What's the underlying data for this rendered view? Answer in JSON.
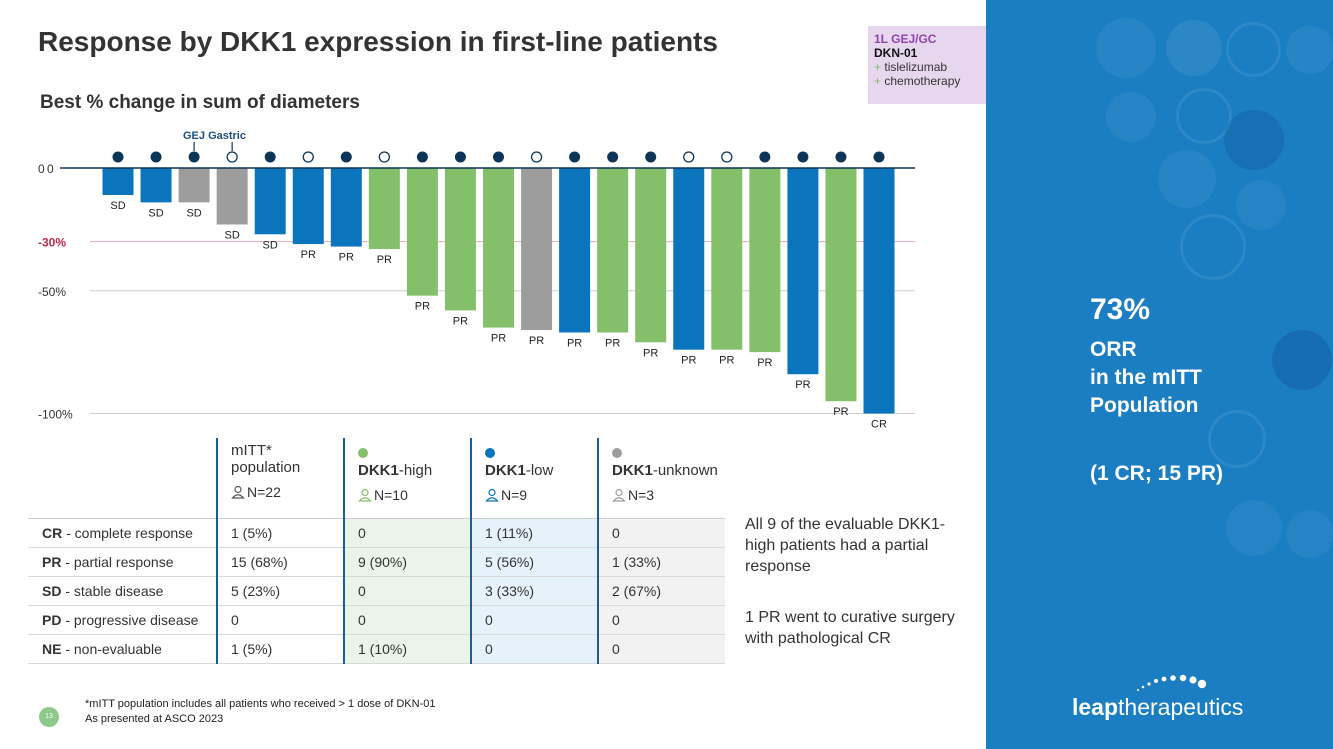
{
  "title": "Response by DKK1 expression in first-line patients",
  "subtitle": "Best % change in sum of diameters",
  "tag": {
    "line1": "1L GEJ/GC",
    "line2": "DKN-01",
    "line3_plus": "+",
    "line3": "tislelizumab",
    "line4_plus": "+",
    "line4": "chemotherapy"
  },
  "colors": {
    "high": "#84bf6a",
    "low": "#0a75bd",
    "unknown": "#9d9d9d",
    "navy": "#0d3557",
    "threshold_label": "#c0294a",
    "threshold_line": "#e7a9b5",
    "panel": "#1b7ec2"
  },
  "chart_data": {
    "type": "bar",
    "title": "Best % change in sum of diameters",
    "ylim": [
      -100,
      0
    ],
    "yticks": [
      {
        "value": 0,
        "label": "0"
      },
      {
        "value": -30,
        "label": "-30%",
        "highlight": true
      },
      {
        "value": -50,
        "label": "-50%"
      },
      {
        "value": -100,
        "label": "-100%"
      }
    ],
    "annotation": "GEJ Gastric",
    "marker_legend": {
      "filled": "GEJ",
      "open": "Gastric"
    },
    "series_colors": {
      "DKK1-high": "#84bf6a",
      "DKK1-low": "#0a75bd",
      "DKK1-unknown": "#9d9d9d"
    },
    "patients": [
      {
        "value": -11,
        "response": "SD",
        "dkk1": "DKK1-low",
        "site": "GEJ"
      },
      {
        "value": -14,
        "response": "SD",
        "dkk1": "DKK1-low",
        "site": "GEJ"
      },
      {
        "value": -14,
        "response": "SD",
        "dkk1": "DKK1-unknown",
        "site": "GEJ"
      },
      {
        "value": -23,
        "response": "SD",
        "dkk1": "DKK1-unknown",
        "site": "Gastric"
      },
      {
        "value": -27,
        "response": "SD",
        "dkk1": "DKK1-low",
        "site": "GEJ"
      },
      {
        "value": -31,
        "response": "PR",
        "dkk1": "DKK1-low",
        "site": "Gastric"
      },
      {
        "value": -32,
        "response": "PR",
        "dkk1": "DKK1-low",
        "site": "GEJ"
      },
      {
        "value": -33,
        "response": "PR",
        "dkk1": "DKK1-high",
        "site": "Gastric"
      },
      {
        "value": -52,
        "response": "PR",
        "dkk1": "DKK1-high",
        "site": "GEJ"
      },
      {
        "value": -58,
        "response": "PR",
        "dkk1": "DKK1-high",
        "site": "GEJ"
      },
      {
        "value": -65,
        "response": "PR",
        "dkk1": "DKK1-high",
        "site": "GEJ"
      },
      {
        "value": -66,
        "response": "PR",
        "dkk1": "DKK1-unknown",
        "site": "Gastric"
      },
      {
        "value": -67,
        "response": "PR",
        "dkk1": "DKK1-low",
        "site": "GEJ"
      },
      {
        "value": -67,
        "response": "PR",
        "dkk1": "DKK1-high",
        "site": "GEJ"
      },
      {
        "value": -71,
        "response": "PR",
        "dkk1": "DKK1-high",
        "site": "GEJ"
      },
      {
        "value": -74,
        "response": "PR",
        "dkk1": "DKK1-low",
        "site": "Gastric"
      },
      {
        "value": -74,
        "response": "PR",
        "dkk1": "DKK1-high",
        "site": "Gastric"
      },
      {
        "value": -75,
        "response": "PR",
        "dkk1": "DKK1-high",
        "site": "GEJ"
      },
      {
        "value": -84,
        "response": "PR",
        "dkk1": "DKK1-low",
        "site": "GEJ"
      },
      {
        "value": -95,
        "response": "PR",
        "dkk1": "DKK1-high",
        "site": "GEJ"
      },
      {
        "value": -100,
        "response": "CR",
        "dkk1": "DKK1-low",
        "site": "GEJ"
      }
    ]
  },
  "table": {
    "headers": [
      {
        "line1": "mITT*",
        "line2": "population",
        "n": "N=22",
        "bold": "",
        "rest": ""
      },
      {
        "bold": "DKK1",
        "rest": "-high",
        "n": "N=10"
      },
      {
        "bold": "DKK1",
        "rest": "-low",
        "n": "N=9"
      },
      {
        "bold": "DKK1",
        "rest": "-unknown",
        "n": "N=3"
      }
    ],
    "rows": [
      {
        "abbr": "CR",
        "label": " - complete response",
        "values": [
          "1 (5%)",
          "0",
          "1 (11%)",
          "0"
        ]
      },
      {
        "abbr": "PR",
        "label": " - partial response",
        "values": [
          "15 (68%)",
          "9 (90%)",
          "5 (56%)",
          "1 (33%)"
        ]
      },
      {
        "abbr": "SD",
        "label": " - stable disease",
        "values": [
          "5 (23%)",
          "0",
          "3 (33%)",
          "2 (67%)"
        ]
      },
      {
        "abbr": "PD",
        "label": " - progressive disease",
        "values": [
          "0",
          "0",
          "0",
          "0"
        ]
      },
      {
        "abbr": "NE",
        "label": " - non-evaluable",
        "values": [
          "1 (5%)",
          "1 (10%)",
          "0",
          "0"
        ]
      }
    ]
  },
  "notes": {
    "note1": "All 9 of the evaluable DKK1-high patients had a partial response",
    "note2": "1 PR went to curative surgery with pathological CR"
  },
  "panel": {
    "pct": "73%",
    "l1": "ORR",
    "l2": "in the mITT",
    "l3": "Population",
    "sub": "(1 CR; 15 PR)"
  },
  "logo": {
    "bold": "leap",
    "rest": "therapeutics"
  },
  "footer": {
    "line1": "*mITT population includes all patients who received > 1 dose of DKN-01",
    "line2": "As presented at ASCO 2023",
    "page": "13"
  }
}
